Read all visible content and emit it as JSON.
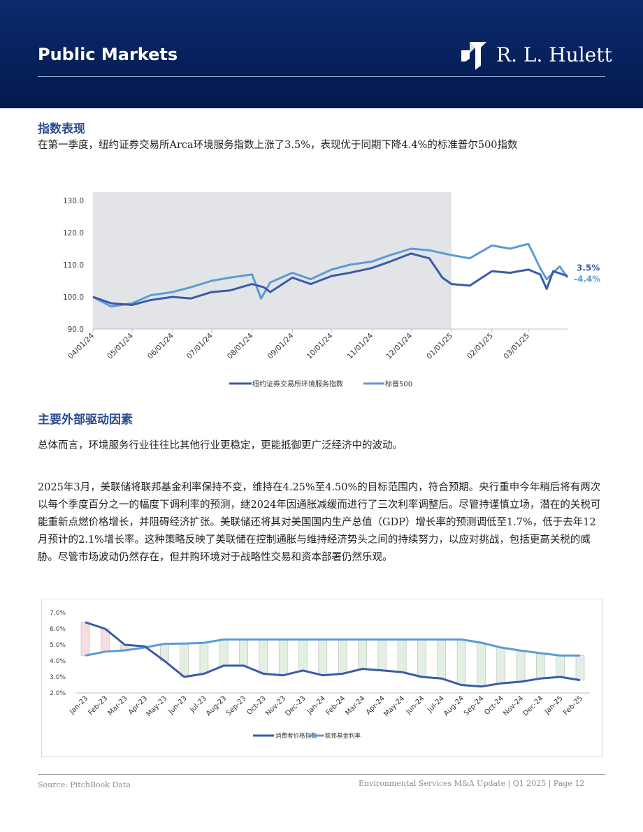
{
  "header": {
    "title": "Public Markets",
    "brand": "R. L. Hulett"
  },
  "section1": {
    "title": "指数表现",
    "intro": "在第一季度，纽约证券交易所Arca环境服务指数上涨了3.5%，表现优于同期下降4.4%的标准普尔500指数"
  },
  "section2": {
    "title": "主要外部驱动因素",
    "para1": "总体而言，环境服务行业往往比其他行业更稳定，更能抵御更广泛经济中的波动。",
    "para2": "2025年3月，美联储将联邦基金利率保持不变，维持在4.25%至4.50%的目标范围内，符合预期。央行重申今年稍后将有两次以每个季度百分之一的幅度下调利率的预测，继2024年因通胀减缓而进行了三次利率调整后。尽管持谨慎立场，潜在的关税可能重新点燃价格增长，并阻碍经济扩张。美联储还将其对美国国内生产总值（GDP）增长率的预测调低至1.7%，低于去年12月预计的2.1%增长率。这种策略反映了美联储在控制通胀与维持经济势头之间的持续努力，以应对挑战，包括更高关税的威胁。尽管市场波动仍然存在，但并购环境对于战略性交易和资本部署仍然乐观。"
  },
  "colors": {
    "index_line": "#3a5ba8",
    "sp500_line": "#5b9bd5",
    "shade": "#e3e4e7",
    "cpi_line": "#3a5ba8",
    "ffr_line": "#5b9bd5",
    "gap_above": "#f6dede",
    "gap_below": "#e3efe3"
  },
  "chart_data": [
    {
      "type": "line",
      "x_ticks": [
        "04/01/24",
        "05/01/24",
        "06/01/24",
        "07/01/24",
        "08/01/24",
        "09/01/24",
        "10/01/24",
        "11/01/24",
        "12/01/24",
        "01/01/25",
        "02/01/25",
        "03/01/25"
      ],
      "ylim": [
        90,
        130
      ],
      "y_ticks": [
        "90.0",
        "100.0",
        "110.0",
        "120.0",
        "130.0"
      ],
      "shaded_range_end": "01/01/25",
      "annotations": [
        "3.5%",
        "-4.4%"
      ],
      "legend_position": "bottom",
      "series": [
        {
          "name": "纽约证券交易所环境服务指数",
          "points": [
            [
              "04/01/24",
              100
            ],
            [
              "04/15/24",
              98
            ],
            [
              "05/01/24",
              97.5
            ],
            [
              "05/15/24",
              99
            ],
            [
              "06/01/24",
              100
            ],
            [
              "06/15/24",
              99.5
            ],
            [
              "07/01/24",
              101.5
            ],
            [
              "07/15/24",
              102
            ],
            [
              "08/01/24",
              104
            ],
            [
              "08/10/24",
              103
            ],
            [
              "08/15/24",
              101.5
            ],
            [
              "09/01/24",
              106
            ],
            [
              "09/15/24",
              104
            ],
            [
              "10/01/24",
              106.5
            ],
            [
              "10/15/24",
              107.5
            ],
            [
              "11/01/24",
              109
            ],
            [
              "11/15/24",
              111
            ],
            [
              "12/01/24",
              113.5
            ],
            [
              "12/15/24",
              112
            ],
            [
              "12/25/24",
              106
            ],
            [
              "01/01/25",
              104
            ],
            [
              "01/15/25",
              103.5
            ],
            [
              "02/01/25",
              108
            ],
            [
              "02/15/25",
              107.5
            ],
            [
              "03/01/25",
              108.5
            ],
            [
              "03/10/25",
              107
            ],
            [
              "03/15/25",
              102.5
            ],
            [
              "03/20/25",
              108
            ],
            [
              "03/31/25",
              106.5
            ]
          ]
        },
        {
          "name": "标普500",
          "points": [
            [
              "04/01/24",
              100
            ],
            [
              "04/15/24",
              97
            ],
            [
              "05/01/24",
              98
            ],
            [
              "05/15/24",
              100.5
            ],
            [
              "06/01/24",
              101.5
            ],
            [
              "06/15/24",
              103
            ],
            [
              "07/01/24",
              105
            ],
            [
              "07/15/24",
              106
            ],
            [
              "08/01/24",
              107
            ],
            [
              "08/08/24",
              99.5
            ],
            [
              "08/15/24",
              104.5
            ],
            [
              "09/01/24",
              107.5
            ],
            [
              "09/15/24",
              105.5
            ],
            [
              "10/01/24",
              108.5
            ],
            [
              "10/15/24",
              110
            ],
            [
              "11/01/24",
              111
            ],
            [
              "11/15/24",
              113
            ],
            [
              "12/01/24",
              115
            ],
            [
              "12/15/24",
              114.5
            ],
            [
              "01/01/25",
              113
            ],
            [
              "01/15/25",
              112
            ],
            [
              "02/01/25",
              116
            ],
            [
              "02/15/25",
              115
            ],
            [
              "03/01/25",
              116.5
            ],
            [
              "03/10/25",
              109
            ],
            [
              "03/15/25",
              105.5
            ],
            [
              "03/25/25",
              109.5
            ],
            [
              "03/31/25",
              106
            ]
          ]
        }
      ]
    },
    {
      "type": "line",
      "categories": [
        "Jan-23",
        "Feb-23",
        "Mar-23",
        "Apr-23",
        "May-23",
        "Jun-23",
        "Jul-23",
        "Aug-23",
        "Sep-23",
        "Oct-23",
        "Nov-23",
        "Dec-23",
        "Jan-24",
        "Feb-24",
        "Mar-24",
        "Apr-24",
        "May-24",
        "Jun-24",
        "Jul-24",
        "Aug-24",
        "Sep-24",
        "Oct-24",
        "Nov-24",
        "Dec-24",
        "Jan-25",
        "Feb-25"
      ],
      "ylim": [
        2.0,
        7.0
      ],
      "y_ticks": [
        "2.0%",
        "3.0%",
        "4.0%",
        "5.0%",
        "6.0%",
        "7.0%"
      ],
      "legend_position": "bottom",
      "series": [
        {
          "name": "消费者价格指数",
          "values": [
            6.4,
            6.0,
            5.0,
            4.9,
            4.0,
            3.0,
            3.2,
            3.7,
            3.7,
            3.2,
            3.1,
            3.4,
            3.1,
            3.2,
            3.5,
            3.4,
            3.3,
            3.0,
            2.9,
            2.5,
            2.4,
            2.6,
            2.7,
            2.9,
            3.0,
            2.8
          ]
        },
        {
          "name": "联邦基金利率",
          "values": [
            4.33,
            4.57,
            4.65,
            4.83,
            5.06,
            5.08,
            5.12,
            5.33,
            5.33,
            5.33,
            5.33,
            5.33,
            5.33,
            5.33,
            5.33,
            5.33,
            5.33,
            5.33,
            5.33,
            5.33,
            5.13,
            4.83,
            4.64,
            4.48,
            4.33,
            4.33
          ]
        }
      ]
    }
  ],
  "footer": {
    "source": "Source: PitchBook Data",
    "right": "Environmental Services M&A Update | Q1 2025 | Page 12"
  }
}
